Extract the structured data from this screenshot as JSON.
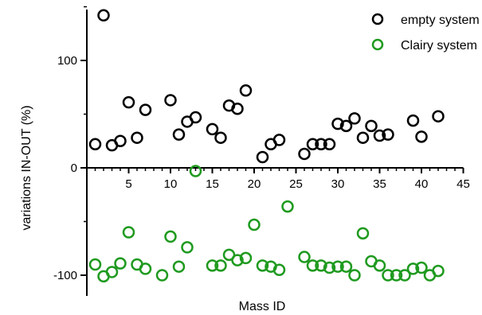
{
  "chart_data": {
    "type": "scatter",
    "xlabel": "Mass ID",
    "ylabel": "variations IN-OUT (%)",
    "xlim": [
      0,
      45
    ],
    "ylim": [
      -120,
      150
    ],
    "x_ticks": [
      5,
      10,
      15,
      20,
      25,
      30,
      35,
      40,
      45
    ],
    "y_ticks": [
      -100,
      0,
      100
    ],
    "grid": false,
    "legend_position": "top-right",
    "series": [
      {
        "name": "empty system",
        "color": "#000000",
        "marker": "open-circle",
        "points": [
          [
            1,
            22
          ],
          [
            2,
            142
          ],
          [
            3,
            21
          ],
          [
            4,
            25
          ],
          [
            5,
            61
          ],
          [
            6,
            28
          ],
          [
            7,
            54
          ],
          [
            10,
            63
          ],
          [
            11,
            31
          ],
          [
            12,
            43
          ],
          [
            13,
            47
          ],
          [
            15,
            36
          ],
          [
            16,
            28
          ],
          [
            17,
            58
          ],
          [
            18,
            55
          ],
          [
            19,
            72
          ],
          [
            21,
            10
          ],
          [
            22,
            22
          ],
          [
            23,
            26
          ],
          [
            26,
            13
          ],
          [
            27,
            22
          ],
          [
            28,
            22
          ],
          [
            29,
            22
          ],
          [
            30,
            41
          ],
          [
            31,
            39
          ],
          [
            32,
            46
          ],
          [
            33,
            28
          ],
          [
            34,
            39
          ],
          [
            35,
            30
          ],
          [
            36,
            31
          ],
          [
            39,
            44
          ],
          [
            40,
            29
          ],
          [
            42,
            48
          ]
        ]
      },
      {
        "name": "Clairy system",
        "color": "#1f9a1f",
        "marker": "open-circle",
        "points": [
          [
            1,
            -90
          ],
          [
            2,
            -101
          ],
          [
            3,
            -97
          ],
          [
            4,
            -89
          ],
          [
            5,
            -60
          ],
          [
            6,
            -90
          ],
          [
            7,
            -94
          ],
          [
            9,
            -100
          ],
          [
            10,
            -64
          ],
          [
            11,
            -92
          ],
          [
            12,
            -74
          ],
          [
            13,
            -3
          ],
          [
            15,
            -91
          ],
          [
            16,
            -91
          ],
          [
            17,
            -81
          ],
          [
            18,
            -86
          ],
          [
            19,
            -84
          ],
          [
            20,
            -53
          ],
          [
            21,
            -91
          ],
          [
            22,
            -92
          ],
          [
            23,
            -95
          ],
          [
            24,
            -36
          ],
          [
            26,
            -83
          ],
          [
            27,
            -91
          ],
          [
            28,
            -91
          ],
          [
            29,
            -93
          ],
          [
            30,
            -92
          ],
          [
            31,
            -92
          ],
          [
            32,
            -100
          ],
          [
            33,
            -61
          ],
          [
            34,
            -87
          ],
          [
            35,
            -91
          ],
          [
            36,
            -100
          ],
          [
            37,
            -100
          ],
          [
            38,
            -100
          ],
          [
            39,
            -94
          ],
          [
            40,
            -93
          ],
          [
            41,
            -100
          ],
          [
            42,
            -96
          ]
        ]
      }
    ]
  }
}
